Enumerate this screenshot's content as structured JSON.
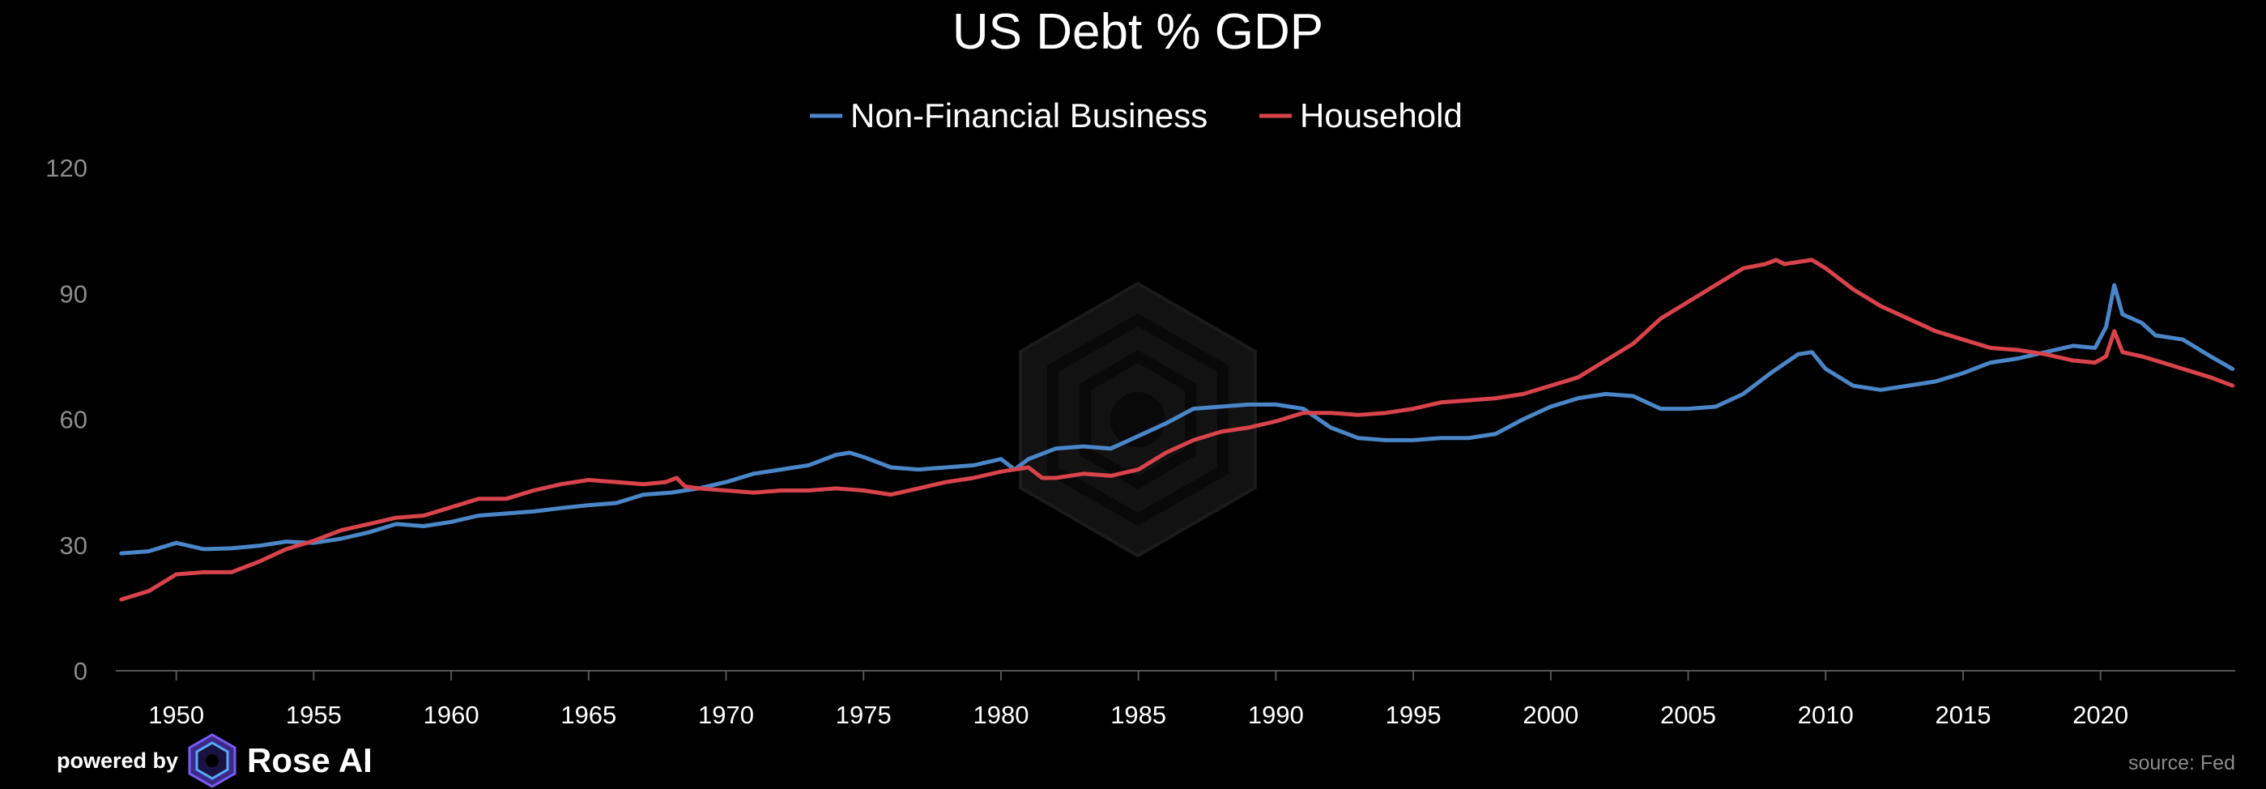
{
  "colors": {
    "background": "#000000",
    "business": "#4a86c8",
    "household": "#d9434b",
    "axis": "#555555",
    "tick_text": "#8c8c8c",
    "watermark": "#1a1a1a"
  },
  "icons": {
    "watermark": "rose-ai-watermark-icon",
    "logo": "rose-ai-logo-icon"
  },
  "footer": {
    "powered_by": "powered by",
    "brand": "Rose AI",
    "source": "source: Fed"
  },
  "chart_data": {
    "type": "line",
    "title": "US Debt % GDP",
    "xlabel": "",
    "ylabel": "",
    "xlim": [
      1947.8,
      2024.9
    ],
    "ylim": [
      0,
      120
    ],
    "yticks": [
      0,
      30,
      60,
      90,
      120
    ],
    "xticks": [
      1950,
      1955,
      1960,
      1965,
      1970,
      1975,
      1980,
      1985,
      1990,
      1995,
      2000,
      2005,
      2010,
      2015,
      2020
    ],
    "legend_position": "top-center",
    "series": [
      {
        "name": "Non-Financial Business",
        "color": "#4a86c8",
        "x": [
          1948,
          1949,
          1950,
          1951,
          1952,
          1953,
          1954,
          1955,
          1956,
          1957,
          1958,
          1959,
          1960,
          1961,
          1962,
          1963,
          1964,
          1965,
          1966,
          1967,
          1968,
          1969,
          1970,
          1971,
          1972,
          1973,
          1974,
          1974.5,
          1975,
          1976,
          1977,
          1978,
          1979,
          1980,
          1980.5,
          1981,
          1982,
          1983,
          1984,
          1985,
          1986,
          1987,
          1988,
          1989,
          1990,
          1991,
          1992,
          1993,
          1994,
          1995,
          1996,
          1997,
          1998,
          1999,
          2000,
          2001,
          2002,
          2003,
          2004,
          2005,
          2006,
          2007,
          2008,
          2009,
          2009.5,
          2010,
          2011,
          2012,
          2013,
          2014,
          2015,
          2016,
          2017,
          2018,
          2019,
          2019.8,
          2020.2,
          2020.5,
          2020.8,
          2021.5,
          2022,
          2023,
          2024,
          2024.8
        ],
        "values": [
          28,
          28.5,
          30.5,
          29,
          29.2,
          29.8,
          30.8,
          30.5,
          31.5,
          33,
          35,
          34.5,
          35.5,
          37,
          37.5,
          38,
          38.8,
          39.5,
          40,
          42,
          42.5,
          43.5,
          45,
          47,
          48,
          49,
          51.5,
          52,
          51,
          48.5,
          48,
          48.5,
          49,
          50.5,
          48,
          50.5,
          53,
          53.5,
          53,
          56,
          59,
          62.5,
          63,
          63.5,
          63.5,
          62.5,
          58,
          55.5,
          55,
          55,
          55.5,
          55.5,
          56.5,
          60,
          63,
          65,
          66,
          65.5,
          62.5,
          62.5,
          63,
          66,
          71,
          75.5,
          76,
          72,
          68,
          67,
          68,
          69,
          71,
          73.5,
          74.5,
          76,
          77.5,
          77,
          82,
          92,
          85,
          83,
          80,
          79,
          75,
          72
        ]
      },
      {
        "name": "Household",
        "color": "#d9434b",
        "x": [
          1948,
          1949,
          1950,
          1951,
          1952,
          1953,
          1954,
          1955,
          1956,
          1957,
          1958,
          1959,
          1960,
          1961,
          1962,
          1963,
          1964,
          1965,
          1966,
          1967,
          1967.8,
          1968.2,
          1968.5,
          1969,
          1970,
          1971,
          1972,
          1973,
          1974,
          1975,
          1976,
          1977,
          1978,
          1979,
          1980,
          1981,
          1981.5,
          1982,
          1983,
          1984,
          1985,
          1986,
          1987,
          1988,
          1989,
          1990,
          1991,
          1992,
          1993,
          1994,
          1995,
          1996,
          1997,
          1998,
          1999,
          2000,
          2001,
          2002,
          2003,
          2004,
          2005,
          2006,
          2007,
          2007.8,
          2008.2,
          2008.5,
          2009,
          2009.5,
          2010,
          2011,
          2012,
          2013,
          2014,
          2015,
          2016,
          2017,
          2018,
          2019,
          2019.8,
          2020.2,
          2020.5,
          2020.8,
          2021.5,
          2022,
          2023,
          2024,
          2024.8
        ],
        "values": [
          17,
          19,
          23,
          23.5,
          23.5,
          26,
          29,
          31,
          33.5,
          35,
          36.5,
          37,
          39,
          41,
          41,
          43,
          44.5,
          45.5,
          45,
          44.5,
          45,
          46,
          44,
          43.5,
          43,
          42.5,
          43,
          43,
          43.5,
          43,
          42,
          43.5,
          45,
          46,
          47.5,
          48.5,
          46,
          46,
          47,
          46.5,
          48,
          52,
          55,
          57,
          58,
          59.5,
          61.5,
          61.5,
          61,
          61.5,
          62.5,
          64,
          64.5,
          65,
          66,
          68,
          70,
          74,
          78,
          84,
          88,
          92,
          96,
          97,
          98,
          97,
          97.5,
          98,
          96,
          91,
          87,
          84,
          81,
          79,
          77,
          76.5,
          75.5,
          74,
          73.5,
          75,
          81,
          76,
          75,
          74,
          72,
          70,
          68
        ]
      }
    ]
  }
}
